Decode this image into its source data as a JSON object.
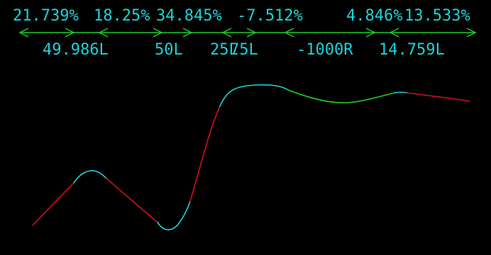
{
  "colors": {
    "background": "#000000",
    "label_text": "#19d3d8",
    "dimension_line": "#22cc22",
    "curve_red": "#d0101c",
    "curve_cyan": "#19d3d8",
    "curve_green": "#22cc22"
  },
  "percent_labels": [
    "21.739%",
    "18.25%",
    "34.845%",
    "-7.512%",
    "4.846%",
    "13.533%"
  ],
  "length_labels": [
    "49.986L",
    "50L",
    "25L",
    "75L",
    "-1000R",
    "14.759L"
  ]
}
